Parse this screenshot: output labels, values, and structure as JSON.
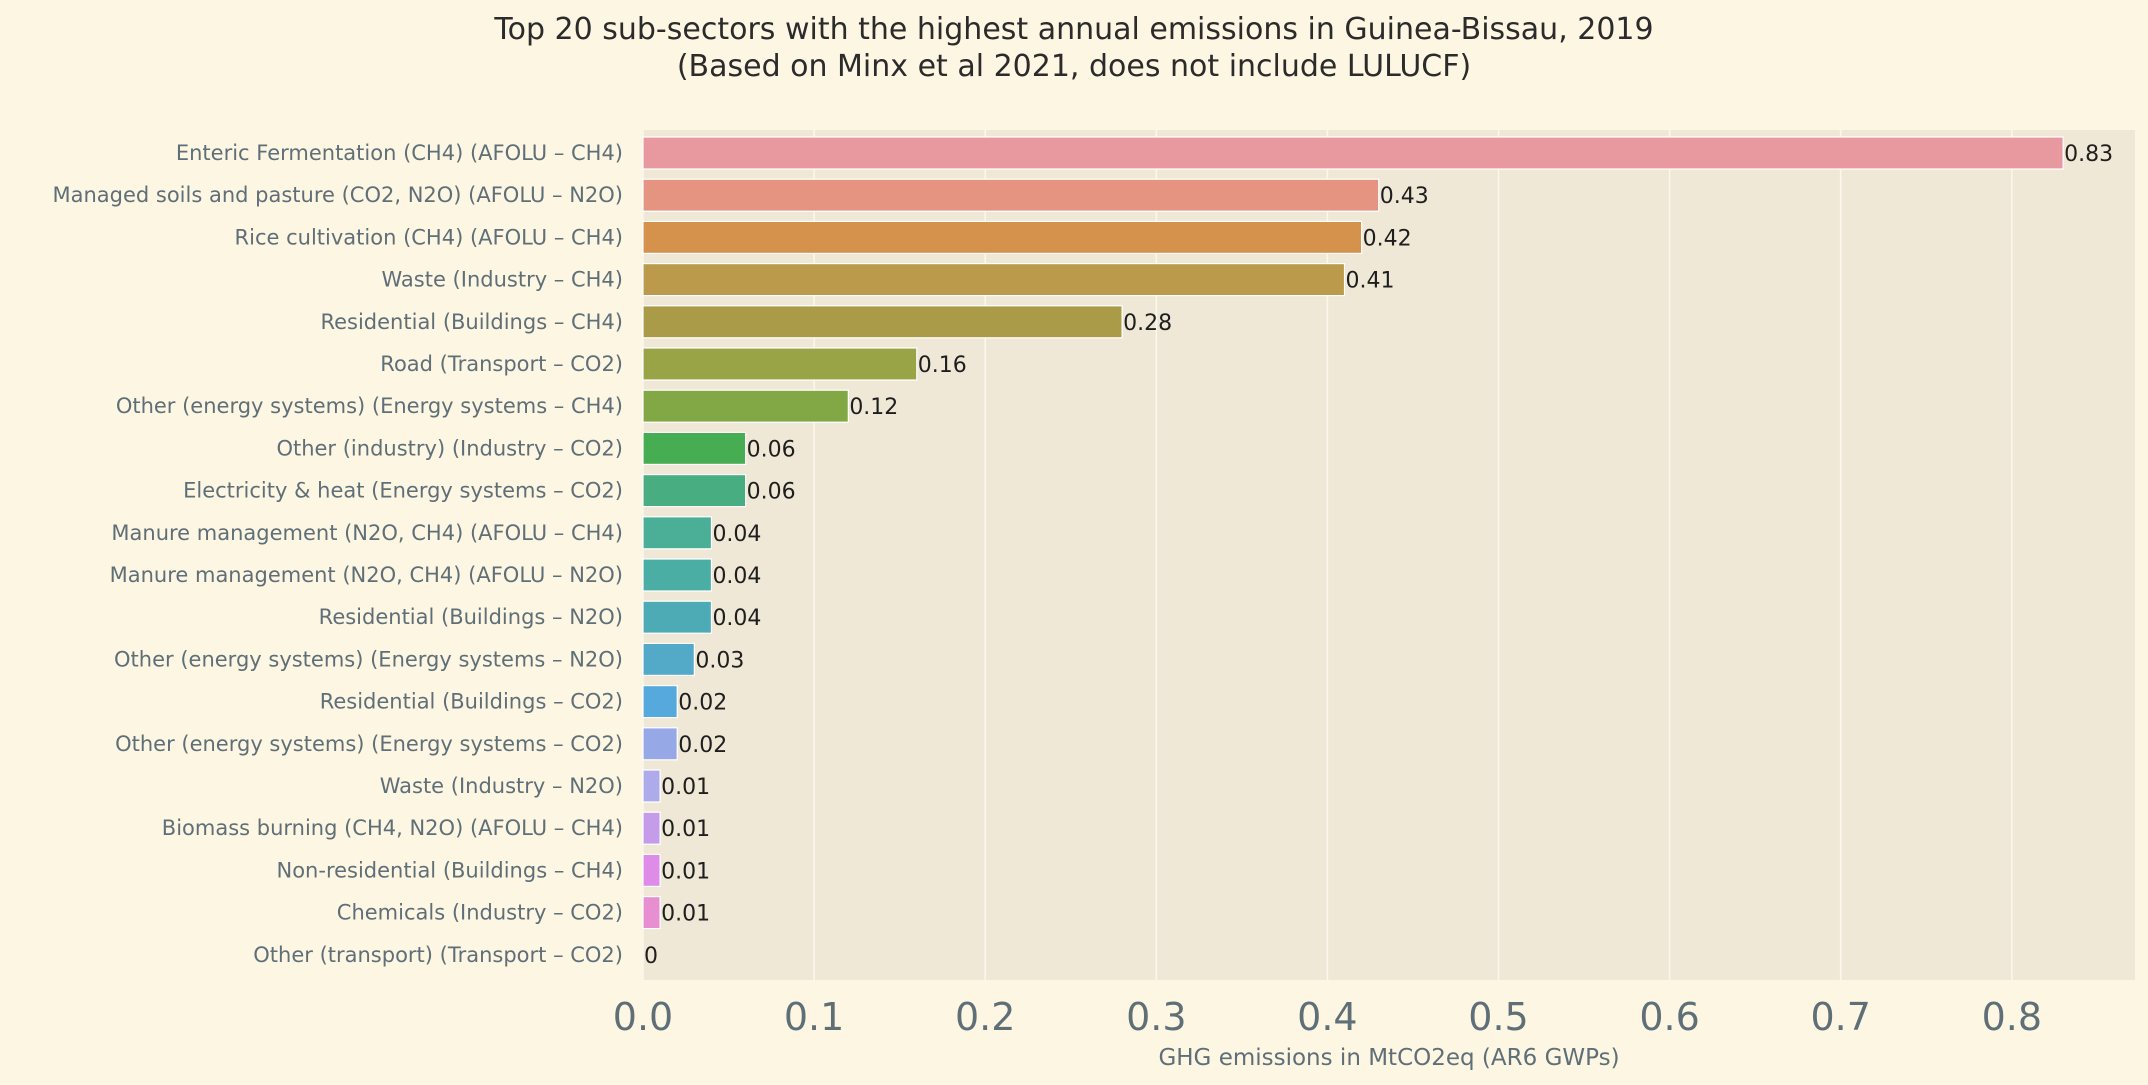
{
  "chart_data": {
    "type": "bar",
    "orientation": "horizontal",
    "title": "Top 20 sub-sectors with the highest annual emissions in Guinea-Bissau, 2019",
    "subtitle": "(Based on Minx et al 2021, does not include LULUCF)",
    "xlabel": "GHG emissions in MtCO2eq (AR6 GWPs)",
    "ylabel": "",
    "xlim": [
      0,
      0.87
    ],
    "x_ticks": [
      "0.0",
      "0.1",
      "0.2",
      "0.3",
      "0.4",
      "0.5",
      "0.6",
      "0.7",
      "0.8"
    ],
    "grid": true,
    "background_color": "#fdf6e3",
    "plot_background_color": "#efe8d6",
    "categories": [
      "Enteric Fermentation (CH4) (AFOLU – CH4)",
      "Managed soils and pasture (CO2, N2O) (AFOLU – N2O)",
      "Rice cultivation (CH4) (AFOLU – CH4)",
      "Waste (Industry – CH4)",
      "Residential (Buildings – CH4)",
      "Road (Transport – CO2)",
      "Other (energy systems) (Energy systems – CH4)",
      "Other (industry) (Industry – CO2)",
      "Electricity & heat (Energy systems – CO2)",
      "Manure management (N2O, CH4) (AFOLU – CH4)",
      "Manure management (N2O, CH4) (AFOLU – N2O)",
      "Residential (Buildings – N2O)",
      "Other (energy systems) (Energy systems – N2O)",
      "Residential (Buildings – CO2)",
      "Other (energy systems) (Energy systems – CO2)",
      "Waste (Industry – N2O)",
      "Biomass burning (CH4, N2O) (AFOLU – CH4)",
      "Non-residential (Buildings – CH4)",
      "Chemicals (Industry – CO2)",
      "Other (transport) (Transport – CO2)"
    ],
    "values": [
      0.83,
      0.43,
      0.42,
      0.41,
      0.28,
      0.16,
      0.12,
      0.06,
      0.06,
      0.04,
      0.04,
      0.04,
      0.03,
      0.02,
      0.02,
      0.01,
      0.01,
      0.01,
      0.01,
      0.0
    ],
    "value_labels": [
      "0.83",
      "0.43",
      "0.42",
      "0.41",
      "0.28",
      "0.16",
      "0.12",
      "0.06",
      "0.06",
      "0.04",
      "0.04",
      "0.04",
      "0.03",
      "0.02",
      "0.02",
      "0.01",
      "0.01",
      "0.01",
      "0.01",
      "0"
    ],
    "colors": [
      "#e8989f",
      "#e59482",
      "#d4924c",
      "#bb9a4b",
      "#aa9b49",
      "#98a445",
      "#82a845",
      "#47ad52",
      "#48ad80",
      "#4bae96",
      "#4aaea4",
      "#4cabb4",
      "#52aac8",
      "#55a9dd",
      "#97a8e6",
      "#adabea",
      "#c49cea",
      "#de8ce8",
      "#e88fd2",
      "#e594bd"
    ]
  }
}
